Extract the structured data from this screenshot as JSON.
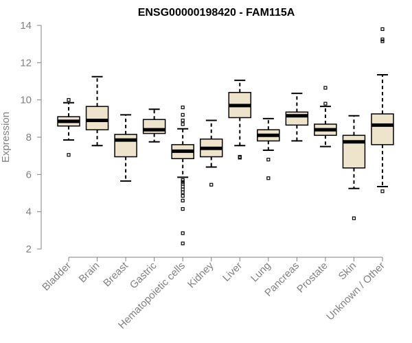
{
  "chart_data": {
    "type": "boxplot",
    "title": "ENSG00000198420 - FAM115A",
    "xlabel": "",
    "ylabel": "Expression",
    "ylim": [
      2,
      14
    ],
    "yticks": [
      2,
      4,
      6,
      8,
      10,
      12,
      14
    ],
    "categories": [
      "Bladder",
      "Brain",
      "Breast",
      "Gastric",
      "Hematopoietic cells",
      "Kidney",
      "Liver",
      "Lung",
      "Pancreas",
      "Prostate",
      "Skin",
      "Unknown / Other"
    ],
    "boxes": [
      {
        "name": "Bladder",
        "whisker_low": 7.85,
        "q1": 8.6,
        "median": 8.85,
        "q3": 9.1,
        "whisker_high": 9.85,
        "outliers": [
          7.05,
          10.0
        ]
      },
      {
        "name": "Brain",
        "whisker_low": 7.55,
        "q1": 8.4,
        "median": 8.9,
        "q3": 9.65,
        "whisker_high": 11.25,
        "outliers": []
      },
      {
        "name": "Breast",
        "whisker_low": 5.65,
        "q1": 6.95,
        "median": 7.85,
        "q3": 8.15,
        "whisker_high": 9.2,
        "outliers": []
      },
      {
        "name": "Gastric",
        "whisker_low": 7.75,
        "q1": 8.2,
        "median": 8.4,
        "q3": 8.95,
        "whisker_high": 9.5,
        "outliers": []
      },
      {
        "name": "Hematopoietic cells",
        "whisker_low": 5.85,
        "q1": 6.85,
        "median": 7.25,
        "q3": 7.6,
        "whisker_high": 8.45,
        "outliers": [
          2.3,
          2.85,
          4.15,
          4.6,
          4.85,
          5.05,
          5.2,
          5.35,
          5.5,
          5.6,
          5.7,
          8.7,
          8.9,
          9.2,
          9.6
        ]
      },
      {
        "name": "Kidney",
        "whisker_low": 6.4,
        "q1": 6.95,
        "median": 7.4,
        "q3": 7.9,
        "whisker_high": 8.9,
        "outliers": [
          5.45
        ]
      },
      {
        "name": "Liver",
        "whisker_low": 7.55,
        "q1": 9.05,
        "median": 9.7,
        "q3": 10.4,
        "whisker_high": 11.05,
        "outliers": [
          6.9,
          6.95
        ]
      },
      {
        "name": "Lung",
        "whisker_low": 7.3,
        "q1": 7.8,
        "median": 8.1,
        "q3": 8.4,
        "whisker_high": 9.0,
        "outliers": [
          5.8,
          6.8
        ]
      },
      {
        "name": "Pancreas",
        "whisker_low": 7.8,
        "q1": 8.65,
        "median": 9.15,
        "q3": 9.35,
        "whisker_high": 10.35,
        "outliers": []
      },
      {
        "name": "Prostate",
        "whisker_low": 7.5,
        "q1": 8.1,
        "median": 8.4,
        "q3": 8.7,
        "whisker_high": 9.65,
        "outliers": [
          9.8,
          10.65
        ]
      },
      {
        "name": "Skin",
        "whisker_low": 5.25,
        "q1": 6.35,
        "median": 7.75,
        "q3": 8.1,
        "whisker_high": 9.15,
        "outliers": [
          3.65
        ]
      },
      {
        "name": "Unknown / Other",
        "whisker_low": 5.35,
        "q1": 7.6,
        "median": 8.65,
        "q3": 9.25,
        "whisker_high": 11.35,
        "outliers": [
          5.1,
          13.15,
          13.25,
          13.8
        ]
      }
    ],
    "box_fill": "#ede4cb",
    "box_stroke": "#000000",
    "axis_color": "#808080",
    "text_color": "#808080",
    "grid": false,
    "legend": "none"
  }
}
